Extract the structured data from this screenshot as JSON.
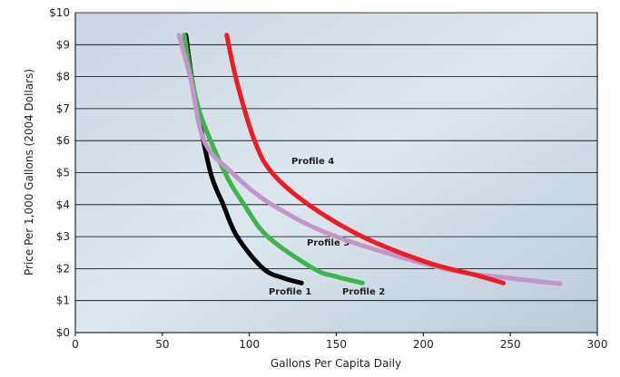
{
  "chart_data": {
    "type": "line",
    "y_label": "Price Per 1,000 Gallons (2004 Dollars)",
    "x_label": "Gallons Per Capita Daily",
    "xlim": [
      0,
      300
    ],
    "xticks": [
      0,
      50,
      100,
      150,
      200,
      250,
      300
    ],
    "ylim": [
      0,
      10
    ],
    "yticks": [
      {
        "value": 0,
        "label": "$0"
      },
      {
        "value": 1,
        "label": "$1"
      },
      {
        "value": 2,
        "label": "$2"
      },
      {
        "value": 3,
        "label": "$3"
      },
      {
        "value": 4,
        "label": "$4"
      },
      {
        "value": 5,
        "label": "$5"
      },
      {
        "value": 6,
        "label": "$6"
      },
      {
        "value": 7,
        "label": "$7"
      },
      {
        "value": 8,
        "label": "$8"
      },
      {
        "value": 9,
        "label": "$9"
      },
      {
        "value": 10,
        "label": "$10"
      }
    ],
    "grid": true,
    "series": [
      {
        "name": "Profile 1",
        "color": "#000000",
        "x": [
          63.6,
          66,
          70,
          77.7,
          85,
          93,
          108,
          120,
          130
        ],
        "values": [
          9.3,
          8.3,
          7,
          5,
          4,
          3,
          2,
          1.7,
          1.55
        ]
      },
      {
        "name": "Profile 2",
        "color": "#3cb54a",
        "x": [
          62.6,
          66,
          72,
          86,
          97,
          110.6,
          137,
          150,
          165
        ],
        "values": [
          9.3,
          8.2,
          6.8,
          5,
          4,
          3,
          2,
          1.75,
          1.55
        ]
      },
      {
        "name": "Profile 3",
        "color": "#c395c9",
        "x": [
          59.5,
          66,
          74,
          90,
          113,
          150,
          212,
          250,
          278.6
        ],
        "values": [
          9.3,
          8,
          6,
          5,
          4,
          3,
          2,
          1.7,
          1.53
        ]
      },
      {
        "name": "Profile 4",
        "color": "#ee1c24",
        "x": [
          87,
          93,
          103,
          113,
          134,
          165,
          202,
          230,
          246
        ],
        "values": [
          9.3,
          7.8,
          6,
          5,
          4,
          3,
          2.2,
          1.8,
          1.55
        ]
      }
    ]
  }
}
